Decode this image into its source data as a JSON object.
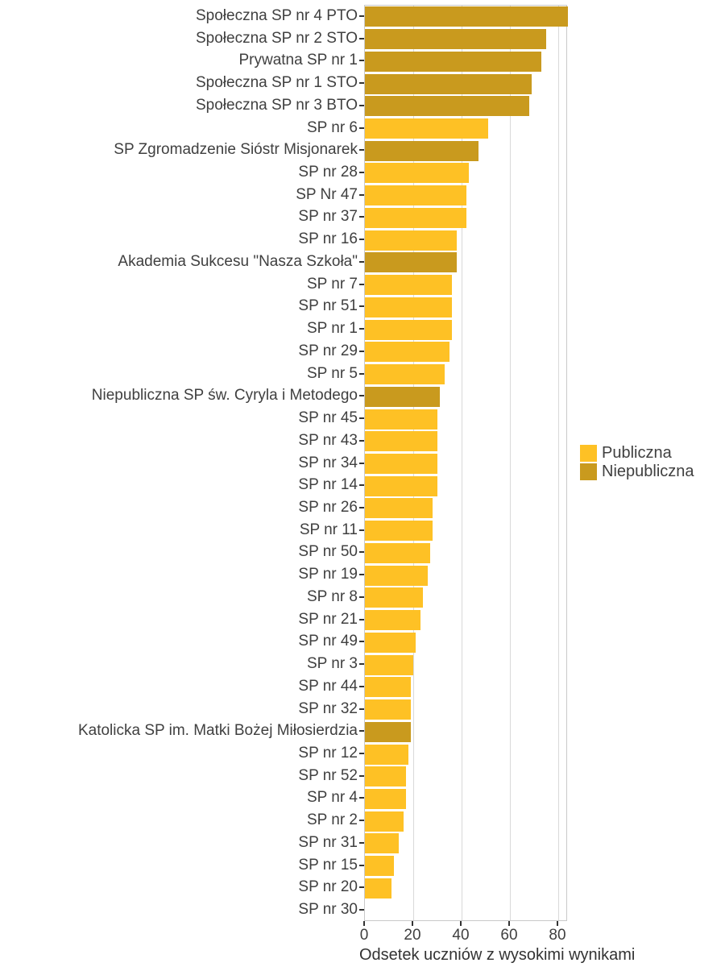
{
  "chart_data": {
    "type": "bar",
    "orientation": "horizontal",
    "title": "",
    "xlabel": "Odsetek uczniów z wysokimi wynikami",
    "ylabel": "",
    "xlim": [
      0,
      84
    ],
    "x_ticks": [
      0,
      20,
      40,
      60,
      80
    ],
    "grid": "vertical-major-only",
    "legend_position": "right",
    "legend": [
      {
        "label": "Publiczna",
        "color": "#FEC125"
      },
      {
        "label": "Niepubliczna",
        "color": "#C99A1E"
      }
    ],
    "bars": [
      {
        "name": "Społeczna SP nr 4 PTO",
        "value": 84,
        "group": "Niepubliczna"
      },
      {
        "name": "Społeczna SP nr 2 STO",
        "value": 75,
        "group": "Niepubliczna"
      },
      {
        "name": "Prywatna SP nr 1",
        "value": 73,
        "group": "Niepubliczna"
      },
      {
        "name": "Społeczna SP nr 1 STO",
        "value": 69,
        "group": "Niepubliczna"
      },
      {
        "name": "Społeczna SP nr 3 BTO",
        "value": 68,
        "group": "Niepubliczna"
      },
      {
        "name": "SP nr 6",
        "value": 51,
        "group": "Publiczna"
      },
      {
        "name": "SP Zgromadzenie Sióstr Misjonarek",
        "value": 47,
        "group": "Niepubliczna"
      },
      {
        "name": "SP nr 28",
        "value": 43,
        "group": "Publiczna"
      },
      {
        "name": "SP Nr 47",
        "value": 42,
        "group": "Publiczna"
      },
      {
        "name": "SP nr 37",
        "value": 42,
        "group": "Publiczna"
      },
      {
        "name": "SP nr 16",
        "value": 38,
        "group": "Publiczna"
      },
      {
        "name": "Akademia Sukcesu \"Nasza Szkoła\"",
        "value": 38,
        "group": "Niepubliczna"
      },
      {
        "name": "SP nr 7",
        "value": 36,
        "group": "Publiczna"
      },
      {
        "name": "SP nr 51",
        "value": 36,
        "group": "Publiczna"
      },
      {
        "name": "SP nr 1",
        "value": 36,
        "group": "Publiczna"
      },
      {
        "name": "SP nr 29",
        "value": 35,
        "group": "Publiczna"
      },
      {
        "name": "SP nr 5",
        "value": 33,
        "group": "Publiczna"
      },
      {
        "name": "Niepubliczna SP św. Cyryla i Metodego",
        "value": 31,
        "group": "Niepubliczna"
      },
      {
        "name": "SP nr 45",
        "value": 30,
        "group": "Publiczna"
      },
      {
        "name": "SP nr 43",
        "value": 30,
        "group": "Publiczna"
      },
      {
        "name": "SP nr 34",
        "value": 30,
        "group": "Publiczna"
      },
      {
        "name": "SP nr 14",
        "value": 30,
        "group": "Publiczna"
      },
      {
        "name": "SP nr 26",
        "value": 28,
        "group": "Publiczna"
      },
      {
        "name": "SP nr 11",
        "value": 28,
        "group": "Publiczna"
      },
      {
        "name": "SP nr 50",
        "value": 27,
        "group": "Publiczna"
      },
      {
        "name": "SP nr 19",
        "value": 26,
        "group": "Publiczna"
      },
      {
        "name": "SP nr 8",
        "value": 24,
        "group": "Publiczna"
      },
      {
        "name": "SP nr 21",
        "value": 23,
        "group": "Publiczna"
      },
      {
        "name": "SP nr 49",
        "value": 21,
        "group": "Publiczna"
      },
      {
        "name": "SP nr 3",
        "value": 20,
        "group": "Publiczna"
      },
      {
        "name": "SP nr 44",
        "value": 19,
        "group": "Publiczna"
      },
      {
        "name": "SP nr 32",
        "value": 19,
        "group": "Publiczna"
      },
      {
        "name": "Katolicka SP im. Matki Bożej Miłosierdzia",
        "value": 19,
        "group": "Niepubliczna"
      },
      {
        "name": "SP nr 12",
        "value": 18,
        "group": "Publiczna"
      },
      {
        "name": "SP nr 52",
        "value": 17,
        "group": "Publiczna"
      },
      {
        "name": "SP nr 4",
        "value": 17,
        "group": "Publiczna"
      },
      {
        "name": "SP nr 2",
        "value": 16,
        "group": "Publiczna"
      },
      {
        "name": "SP nr 31",
        "value": 14,
        "group": "Publiczna"
      },
      {
        "name": "SP nr 15",
        "value": 12,
        "group": "Publiczna"
      },
      {
        "name": "SP nr 20",
        "value": 11,
        "group": "Publiczna"
      },
      {
        "name": "SP nr 30",
        "value": 0,
        "group": "Publiczna"
      }
    ],
    "colors": {
      "Publiczna": "#FEC125",
      "Niepubliczna": "#C99A1E",
      "gridline": "#d9d9d9",
      "panel_border": "#c9c9c9",
      "tick": "#333333",
      "tick_text": "#404040"
    }
  }
}
